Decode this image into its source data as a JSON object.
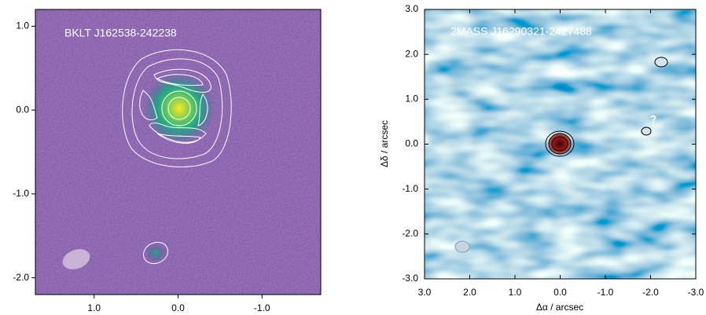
{
  "chart_data": [
    {
      "type": "image",
      "annotation": "BKLT J162538-242238",
      "xlim": [
        1.7,
        -1.7
      ],
      "ylim": [
        -2.2,
        1.2
      ],
      "xticks": [
        {
          "value": 1,
          "label": "1.0"
        },
        {
          "value": 0,
          "label": "0.0"
        },
        {
          "value": -1,
          "label": "-1.0"
        }
      ],
      "yticks": [
        {
          "value": 1,
          "label": "1.0"
        },
        {
          "value": 0,
          "label": "0.0"
        },
        {
          "value": -1,
          "label": "-1.0"
        },
        {
          "value": -2,
          "label": "-2.0"
        }
      ]
    },
    {
      "type": "image",
      "annotation": "2MASS J16290321-2427488",
      "mark_label": "?",
      "xlabel": "Δα / arcsec",
      "ylabel": "Δδ / arcsec",
      "xlim": [
        3,
        -3
      ],
      "ylim": [
        -3,
        3
      ],
      "xticks": [
        {
          "value": 3,
          "label": "3.0"
        },
        {
          "value": 2,
          "label": "2.0"
        },
        {
          "value": 1,
          "label": "1.0"
        },
        {
          "value": 0,
          "label": "0.0"
        },
        {
          "value": -1,
          "label": "-1.0"
        },
        {
          "value": -2,
          "label": "-2.0"
        },
        {
          "value": -3,
          "label": "-3.0"
        }
      ],
      "yticks": [
        {
          "value": 3,
          "label": "3.0"
        },
        {
          "value": 2,
          "label": "2.0"
        },
        {
          "value": 1,
          "label": "1.0"
        },
        {
          "value": 0,
          "label": "0.0"
        },
        {
          "value": -1,
          "label": "-1.0"
        },
        {
          "value": -2,
          "label": "-2.0"
        },
        {
          "value": -3,
          "label": "-3.0"
        }
      ]
    }
  ]
}
